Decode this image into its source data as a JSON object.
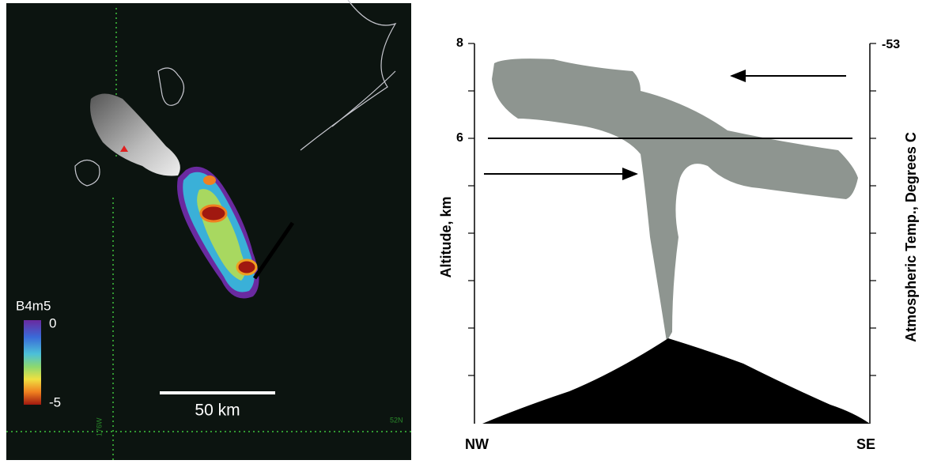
{
  "left_panel": {
    "legend_title": "B4m5",
    "legend_max": "0",
    "legend_min": "-5",
    "scale_bar": "50 km",
    "latitude_label": "52N",
    "longitude_label": "176W"
  },
  "right_panel": {
    "left_axis_title": "Altitude, km",
    "left_tick_top": "8",
    "left_tick_mid": "6",
    "right_axis_title": "Atmospheric Temp., Degrees C",
    "right_tick_top": "-53",
    "x_left": "NW",
    "x_right": "SE"
  }
}
